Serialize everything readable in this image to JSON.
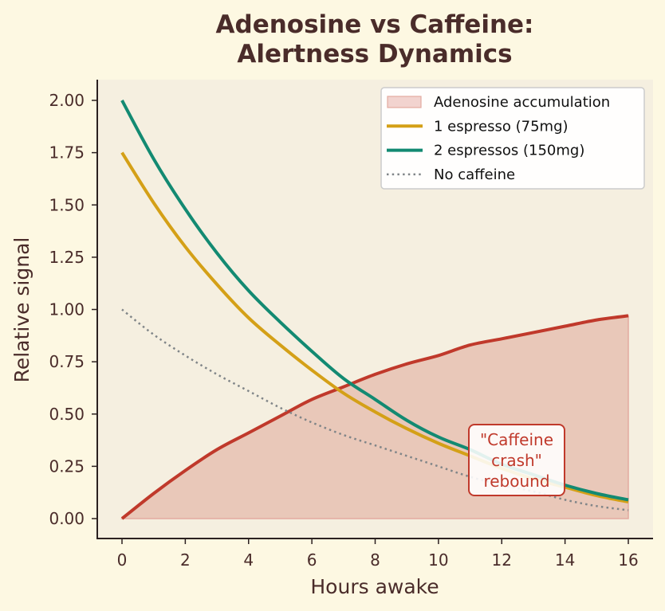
{
  "chart_data": {
    "type": "line",
    "title": "Adenosine vs Caffeine:\nAlertness Dynamics",
    "title_lines": [
      "Adenosine vs Caffeine:",
      "Alertness Dynamics"
    ],
    "xlabel": "Hours awake",
    "ylabel": "Relative signal",
    "xlim": [
      -0.8,
      16.8
    ],
    "ylim": [
      -0.1,
      2.1
    ],
    "xticks": [
      0,
      2,
      4,
      6,
      8,
      10,
      12,
      14,
      16
    ],
    "xtick_labels": [
      "0",
      "2",
      "4",
      "6",
      "8",
      "10",
      "12",
      "14",
      "16"
    ],
    "yticks": [
      0,
      0.25,
      0.5,
      0.75,
      1.0,
      1.25,
      1.5,
      1.75,
      2.0
    ],
    "ytick_labels": [
      "0.00",
      "0.25",
      "0.50",
      "0.75",
      "1.00",
      "1.25",
      "1.50",
      "1.75",
      "2.00"
    ],
    "grid": false,
    "legend_position": "upper right",
    "x": [
      0,
      1,
      2,
      3,
      4,
      5,
      6,
      7,
      8,
      9,
      10,
      11,
      12,
      13,
      14,
      15,
      16
    ],
    "series": [
      {
        "name": "Adenosine accumulation",
        "kind": "line+fill",
        "color": "#c0392b",
        "fill_color": "#e9c8b9",
        "values": [
          0.0,
          0.12,
          0.23,
          0.33,
          0.41,
          0.49,
          0.57,
          0.63,
          0.69,
          0.74,
          0.78,
          0.83,
          0.86,
          0.89,
          0.92,
          0.95,
          0.97
        ]
      },
      {
        "name": "1 espresso (75mg)",
        "kind": "line",
        "color": "#d4a017",
        "values": [
          1.75,
          1.51,
          1.3,
          1.12,
          0.96,
          0.83,
          0.71,
          0.6,
          0.51,
          0.43,
          0.36,
          0.3,
          0.24,
          0.19,
          0.15,
          0.11,
          0.08
        ]
      },
      {
        "name": "2 espressos (150mg)",
        "kind": "line",
        "color": "#138a72",
        "values": [
          2.0,
          1.72,
          1.48,
          1.27,
          1.09,
          0.94,
          0.8,
          0.67,
          0.57,
          0.47,
          0.39,
          0.33,
          0.26,
          0.21,
          0.16,
          0.12,
          0.09
        ]
      },
      {
        "name": "No caffeine",
        "kind": "dotted",
        "color": "#808588",
        "values": [
          1.0,
          0.88,
          0.78,
          0.69,
          0.61,
          0.53,
          0.46,
          0.4,
          0.35,
          0.3,
          0.25,
          0.2,
          0.16,
          0.13,
          0.09,
          0.06,
          0.04
        ]
      }
    ],
    "annotations": [
      {
        "text": "\"Caffeine\ncrash\"\nrebound",
        "lines": [
          "\"Caffeine",
          "crash\"",
          "rebound"
        ],
        "x": 12.3,
        "y": 0.28,
        "color": "#c0392b"
      }
    ]
  },
  "colors": {
    "figure_bg": "#fdf8e2",
    "axes_bg": "#f5efe0",
    "text": "#4a2c2a",
    "spine": "#2b2020"
  }
}
